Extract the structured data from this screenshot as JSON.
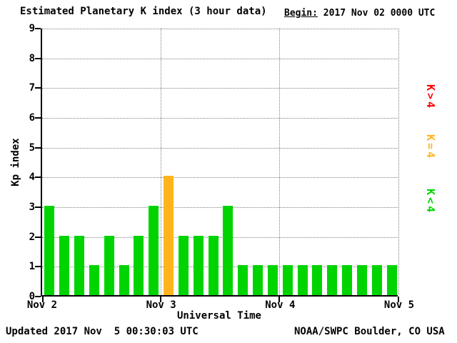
{
  "title": "Estimated Planetary K index (3 hour data)",
  "begin": {
    "label": "Begin:",
    "value": "2017 Nov 02 0000 UTC"
  },
  "legend": [
    {
      "label": "K>4",
      "color": "#ff0000"
    },
    {
      "label": "K=4",
      "color": "#ffb41e"
    },
    {
      "label": "K<4",
      "color": "#00d400"
    }
  ],
  "footer": {
    "updated": "Updated 2017 Nov  5 00:30:03 UTC",
    "source": "NOAA/SWPC Boulder, CO USA"
  },
  "chart_data": {
    "type": "bar",
    "title": "Estimated Planetary K index (3 hour data)",
    "xlabel": "Universal Time",
    "ylabel": "Kp index",
    "begin": "2017 Nov 02 0000 UTC",
    "bar_interval_hours": 3,
    "ylim": [
      0,
      9
    ],
    "y_ticks": [
      0,
      1,
      2,
      3,
      4,
      5,
      6,
      7,
      8,
      9
    ],
    "x_ticks": [
      "Nov 2",
      "Nov 3",
      "Nov 4",
      "Nov 5"
    ],
    "grid": "dotted",
    "values": [
      3,
      2,
      2,
      1,
      2,
      1,
      2,
      3,
      4,
      2,
      2,
      2,
      3,
      1,
      1,
      1,
      1,
      1,
      1,
      1,
      1,
      1,
      1,
      1
    ],
    "color_rule": "green if K<4, yellow if K=4, red if K>4",
    "color_green": "#00d400",
    "color_yellow": "#ffb41e",
    "color_red": "#ff0000"
  }
}
